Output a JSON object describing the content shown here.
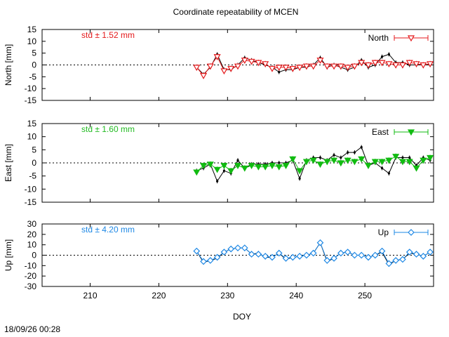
{
  "title": "Coordinate repeatability of MCEN",
  "timestamp": "18/09/26 00:28",
  "chart_data": [
    {
      "type": "line",
      "ylabel": "North [mm]",
      "xlabel": "DOY",
      "xlim": [
        203,
        260
      ],
      "ylim": [
        -15,
        15
      ],
      "xticks": [
        210,
        220,
        230,
        240,
        250
      ],
      "yticks": [
        -15,
        -10,
        -5,
        0,
        5,
        10,
        15
      ],
      "std_label": "std ± 1.52 mm",
      "std_color": "#e41a1c",
      "legend": "North",
      "legend_position": "top-right",
      "series_color": "#e41a1c",
      "marker": "triangle-down-open",
      "x": [
        225.5,
        226.5,
        227.5,
        228.5,
        229.5,
        230.5,
        231.5,
        232.5,
        233.5,
        234.5,
        235.5,
        236.5,
        237.5,
        238.5,
        239.5,
        240.5,
        241.5,
        242.5,
        243.5,
        244.5,
        245.5,
        246.5,
        247.5,
        248.5,
        249.5,
        250.5,
        251.5,
        252.5,
        253.5,
        254.5,
        255.5,
        256.5,
        257.5,
        258.5,
        259.5
      ],
      "raw": [
        -1,
        -4,
        -1,
        4.5,
        -2,
        -2,
        0,
        3,
        2,
        1,
        0,
        -1,
        -3,
        -2,
        -2,
        -1,
        -1,
        0,
        3,
        -1,
        0,
        -1,
        -2,
        -1,
        2,
        -1,
        0,
        3.5,
        4.5,
        1,
        1,
        0,
        0,
        0,
        0
      ],
      "values": [
        -1,
        -4.5,
        -0.5,
        3.5,
        -2.5,
        -1.5,
        -0.5,
        2,
        1.5,
        1,
        0.5,
        -1.5,
        -1,
        -1,
        -1.5,
        -1,
        -0.5,
        -0.5,
        2,
        -0.5,
        -0.5,
        -0.5,
        -1,
        -0.5,
        1,
        0,
        1,
        1,
        0.5,
        0,
        0,
        1,
        0.5,
        0,
        0.5
      ]
    },
    {
      "type": "line",
      "ylabel": "East [mm]",
      "xlim": [
        203,
        260
      ],
      "ylim": [
        -15,
        15
      ],
      "xticks": [
        210,
        220,
        230,
        240,
        250
      ],
      "yticks": [
        -15,
        -10,
        -5,
        0,
        5,
        10,
        15
      ],
      "std_label": "std ± 1.60 mm",
      "std_color": "#22bb22",
      "legend": "East",
      "legend_position": "top-right",
      "series_color": "#11bb11",
      "marker": "triangle-down-filled",
      "x": [
        225.5,
        226.5,
        227.5,
        228.5,
        229.5,
        230.5,
        231.5,
        232.5,
        233.5,
        234.5,
        235.5,
        236.5,
        237.5,
        238.5,
        239.5,
        240.5,
        241.5,
        242.5,
        243.5,
        244.5,
        245.5,
        246.5,
        247.5,
        248.5,
        249.5,
        250.5,
        251.5,
        252.5,
        253.5,
        254.5,
        255.5,
        256.5,
        257.5,
        258.5,
        259.5
      ],
      "raw": [
        -3,
        -2,
        -0.5,
        -7,
        -3,
        -4,
        1,
        -2,
        -0.5,
        -0.5,
        -0.5,
        0,
        0,
        0,
        1,
        -6,
        1,
        2,
        2,
        1,
        3,
        2,
        4,
        4,
        6,
        -1,
        0,
        -2,
        -4,
        2,
        2,
        2,
        -1,
        2,
        1
      ],
      "values": [
        -3.5,
        -1,
        -0.5,
        -2.5,
        -1,
        -3,
        -1,
        -2,
        -1,
        -1.5,
        -1.5,
        -1,
        -1.5,
        -1,
        1.5,
        -3,
        0.5,
        1,
        -0.5,
        0.5,
        1,
        0,
        1,
        0.5,
        1.5,
        -1,
        0.5,
        0.5,
        1,
        2.5,
        0.5,
        0.5,
        -2,
        1,
        2
      ]
    },
    {
      "type": "line",
      "ylabel": "Up [mm]",
      "xlim": [
        203,
        260
      ],
      "ylim": [
        -30,
        30
      ],
      "xticks": [
        210,
        220,
        230,
        240,
        250
      ],
      "yticks": [
        -30,
        -20,
        -10,
        0,
        10,
        20,
        30
      ],
      "std_label": "std ± 4.20 mm",
      "std_color": "#1e88e5",
      "legend": "Up",
      "legend_position": "top-right",
      "series_color": "#1e88e5",
      "marker": "diamond-open",
      "x": [
        225.5,
        226.5,
        227.5,
        228.5,
        229.5,
        230.5,
        231.5,
        232.5,
        233.5,
        234.5,
        235.5,
        236.5,
        237.5,
        238.5,
        239.5,
        240.5,
        241.5,
        242.5,
        243.5,
        244.5,
        245.5,
        246.5,
        247.5,
        248.5,
        249.5,
        250.5,
        251.5,
        252.5,
        253.5,
        254.5,
        255.5,
        256.5,
        257.5,
        258.5,
        259.5
      ],
      "raw": [
        4,
        -7,
        -5,
        -3,
        3,
        6,
        7,
        7,
        1,
        2,
        -2,
        -2,
        2,
        -4,
        -2,
        -1,
        0,
        2,
        12,
        -6,
        -3,
        2,
        3,
        0,
        0,
        -2,
        0,
        3,
        -9,
        -5,
        -4,
        2,
        1,
        -1,
        3
      ],
      "values": [
        4,
        -6,
        -5,
        -2,
        3,
        6,
        7,
        7,
        1,
        1,
        -1,
        -2,
        2,
        -3,
        -2,
        -1,
        0,
        2,
        12,
        -5,
        -3,
        2,
        3,
        0,
        0,
        -2,
        0,
        4,
        -8,
        -5,
        -4,
        3,
        1,
        -1,
        3
      ]
    }
  ]
}
